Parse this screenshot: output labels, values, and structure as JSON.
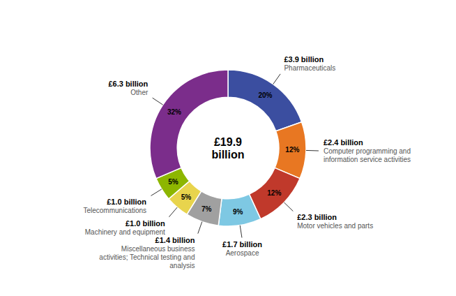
{
  "chart_data": {
    "type": "pie",
    "categories": [
      "Pharmaceuticals",
      "Computer programming and\ninformation service activities",
      "Motor vehicles and parts",
      "Aerospace",
      "Miscellaneous business\nactivities; Technical testing and\nanalysis",
      "Machinery and equipment",
      "Telecommunications",
      "Other"
    ],
    "values": [
      20,
      12,
      12,
      9,
      7,
      5,
      5,
      32
    ],
    "value_labels": [
      "20%",
      "12%",
      "12%",
      "9%",
      "7%",
      "5%",
      "5%",
      "32%"
    ],
    "colors": [
      "#3b4ea0",
      "#e87722",
      "#c0392b",
      "#7ec8e3",
      "#a0a0a0",
      "#e8d44d",
      "#8db600",
      "#7b2d8b"
    ],
    "data_labels": true,
    "annotations": [
      {
        "text": "£19.9\nbillion"
      },
      {
        "text": "£3.9 billion",
        "category": "Pharmaceuticals"
      },
      {
        "text": "£2.4 billion",
        "category": "Computer programming and\ninformation service activities"
      },
      {
        "text": "£2.3 billion",
        "category": "Motor vehicles and parts"
      },
      {
        "text": "£1.7 billion",
        "category": "Aerospace"
      },
      {
        "text": "£1.4 billion",
        "category": "Miscellaneous business\nactivities; Technical testing and\nanalysis"
      },
      {
        "text": "£1.0 billion",
        "category": "Machinery and equipment"
      },
      {
        "text": "£1.0 billion",
        "category": "Telecommunications"
      },
      {
        "text": "£6.3 billion",
        "category": "Other"
      }
    ]
  }
}
